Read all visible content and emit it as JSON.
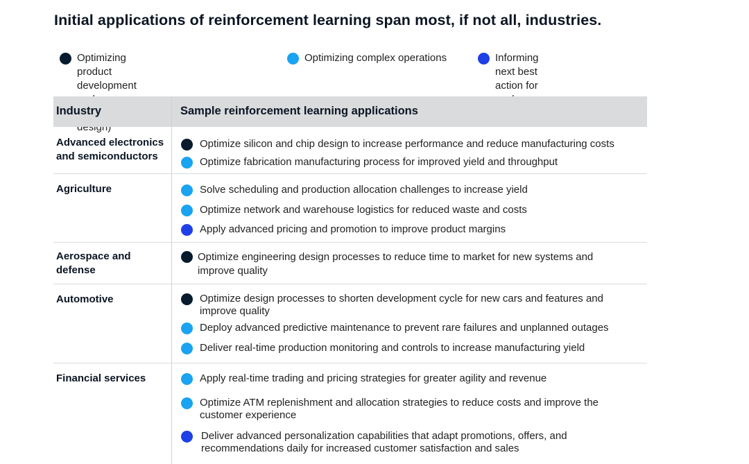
{
  "title": "Initial applications of reinforcement learning span most, if not all, industries.",
  "legend": [
    {
      "key": "design",
      "label": "Optimizing product development cycles\n(AI-assisted design)",
      "color": "#071a2e",
      "icon": "dark-navy-dot-icon"
    },
    {
      "key": "ops",
      "label": "Optimizing complex operations",
      "color": "#1aa3f0",
      "icon": "light-blue-dot-icon"
    },
    {
      "key": "action",
      "label": "Informing next best action for\neach customer",
      "color": "#1f40e6",
      "icon": "royal-blue-dot-icon"
    }
  ],
  "table": {
    "headers": {
      "industry": "Industry",
      "applications": "Sample reinforcement learning applications"
    },
    "rows": [
      {
        "industry": "Advanced electronics\nand semiconductors",
        "applications": [
          {
            "type": "design",
            "text": "Optimize silicon and chip design to increase performance and reduce manufacturing costs"
          },
          {
            "type": "ops",
            "text": "Optimize fabrication manufacturing process for improved yield and throughput"
          }
        ]
      },
      {
        "industry": "Agriculture",
        "applications": [
          {
            "type": "ops",
            "text": "Solve scheduling and production allocation challenges to increase yield"
          },
          {
            "type": "ops",
            "text": "Optimize network and warehouse logistics for reduced waste and costs"
          },
          {
            "type": "action",
            "text": "Apply advanced pricing and promotion to improve product margins"
          }
        ]
      },
      {
        "industry": "Aerospace and\ndefense",
        "applications": [
          {
            "type": "design",
            "text": "Optimize engineering design processes to reduce time to market for new systems and\nimprove quality"
          }
        ]
      },
      {
        "industry": "Automotive",
        "applications": [
          {
            "type": "design",
            "text": "Optimize design processes to shorten development cycle for new cars and features and\nimprove quality"
          },
          {
            "type": "ops",
            "text": "Deploy advanced predictive maintenance to prevent rare failures and unplanned outages"
          },
          {
            "type": "ops",
            "text": "Deliver real-time production monitoring and controls to increase manufacturing yield"
          }
        ]
      },
      {
        "industry": "Financial services",
        "applications": [
          {
            "type": "ops",
            "text": "Apply real-time trading and pricing strategies for greater agility and revenue"
          },
          {
            "type": "ops",
            "text": "Optimize ATM replenishment and allocation strategies to reduce costs and improve the\ncustomer experience"
          },
          {
            "type": "action",
            "text": "Deliver advanced personalization capabilities that adapt promotions, offers, and\nrecommendations daily for increased customer satisfaction and sales"
          }
        ]
      }
    ]
  }
}
